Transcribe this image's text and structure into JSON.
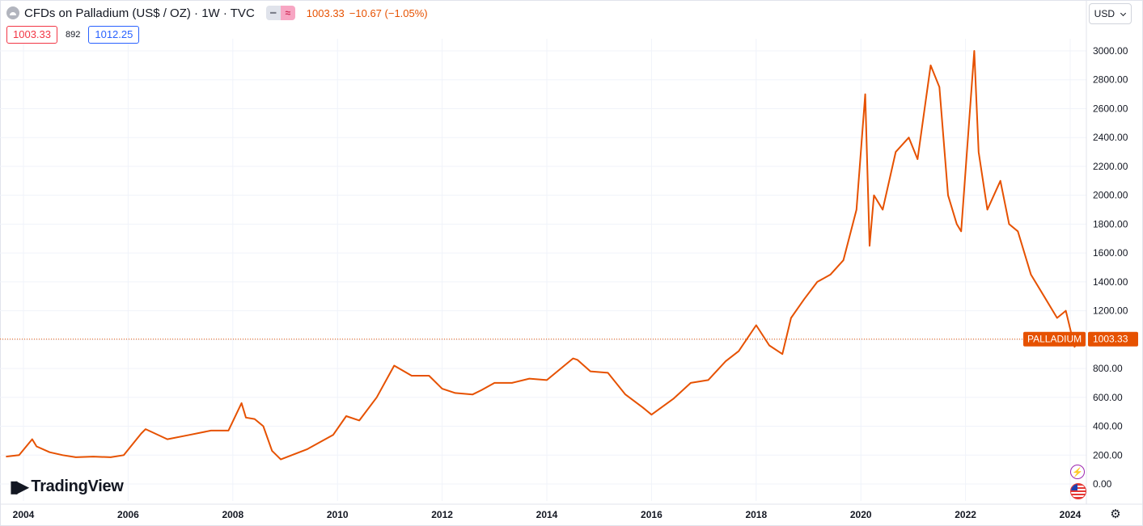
{
  "header": {
    "title": "CFDs on Palladium (US$ / OZ) · 1W · TVC",
    "last_price": "1003.33",
    "change": "−10.67 (−1.05%)"
  },
  "quote_boxes": {
    "bid": "1003.33",
    "spread": "892",
    "ask": "1012.25"
  },
  "currency_selector": {
    "value": "USD"
  },
  "branding": {
    "logo_text": "TradingView"
  },
  "colors": {
    "series": "#e65100",
    "bid_box": "#f23645",
    "ask_box": "#2962ff",
    "grid": "#f0f3fa",
    "axis_text": "#131722"
  },
  "icons": {
    "symbol": "symbol-logo-icon",
    "flash": "lightning-icon",
    "flag": "us-flag-icon",
    "settings": "gear-icon"
  },
  "chart_data": {
    "type": "line",
    "series": [
      {
        "name": "PALLADIUM",
        "last_value": "1003.33"
      }
    ],
    "price_label": "1003.33",
    "x": [
      "2003-09",
      "2003-12",
      "2004-03",
      "2004-04",
      "2004-07",
      "2004-10",
      "2005-01",
      "2005-05",
      "2005-09",
      "2005-12",
      "2006-04",
      "2006-05",
      "2006-10",
      "2007-03",
      "2007-08",
      "2007-12",
      "2008-03",
      "2008-04",
      "2008-06",
      "2008-08",
      "2008-10",
      "2008-12",
      "2009-06",
      "2009-12",
      "2010-03",
      "2010-06",
      "2010-10",
      "2011-02",
      "2011-06",
      "2011-10",
      "2012-01",
      "2012-04",
      "2012-08",
      "2012-10",
      "2013-01",
      "2013-05",
      "2013-09",
      "2014-01",
      "2014-07",
      "2014-08",
      "2014-11",
      "2015-03",
      "2015-07",
      "2015-11",
      "2016-01",
      "2016-06",
      "2016-10",
      "2017-02",
      "2017-06",
      "2017-09",
      "2018-01",
      "2018-04",
      "2018-07",
      "2018-09",
      "2018-12",
      "2019-03",
      "2019-06",
      "2019-09",
      "2019-12",
      "2020-02",
      "2020-03",
      "2020-04",
      "2020-06",
      "2020-09",
      "2020-12",
      "2021-02",
      "2021-05",
      "2021-07",
      "2021-09",
      "2021-11",
      "2021-12",
      "2022-03",
      "2022-04",
      "2022-06",
      "2022-09",
      "2022-11",
      "2023-01",
      "2023-04",
      "2023-07",
      "2023-10",
      "2023-12",
      "2024-02",
      "2024-03"
    ],
    "y": [
      190,
      200,
      310,
      260,
      220,
      200,
      185,
      190,
      185,
      200,
      350,
      380,
      310,
      340,
      370,
      370,
      560,
      460,
      450,
      400,
      230,
      170,
      240,
      340,
      470,
      440,
      600,
      820,
      750,
      750,
      660,
      630,
      620,
      650,
      700,
      700,
      730,
      720,
      870,
      860,
      780,
      770,
      620,
      530,
      480,
      590,
      700,
      720,
      850,
      920,
      1100,
      960,
      900,
      1150,
      1280,
      1400,
      1450,
      1550,
      1900,
      2700,
      1650,
      2000,
      1900,
      2300,
      2400,
      2250,
      2900,
      2750,
      2000,
      1800,
      1750,
      3000,
      2300,
      1900,
      2100,
      1800,
      1750,
      1450,
      1300,
      1150,
      1200,
      950,
      1003.33
    ],
    "ylim": [
      -100,
      3000
    ],
    "yticks": [
      "0.00",
      "200.00",
      "400.00",
      "600.00",
      "800.00",
      "1000.00",
      "1200.00",
      "1400.00",
      "1600.00",
      "1800.00",
      "2000.00",
      "2200.00",
      "2400.00",
      "2600.00",
      "2800.00",
      "3000.00"
    ],
    "xticks": [
      "2004",
      "2006",
      "2008",
      "2010",
      "2012",
      "2014",
      "2016",
      "2018",
      "2020",
      "2022",
      "2024"
    ],
    "xlim": [
      "2003-09",
      "2024-06"
    ],
    "grid": true,
    "legend": "none"
  }
}
